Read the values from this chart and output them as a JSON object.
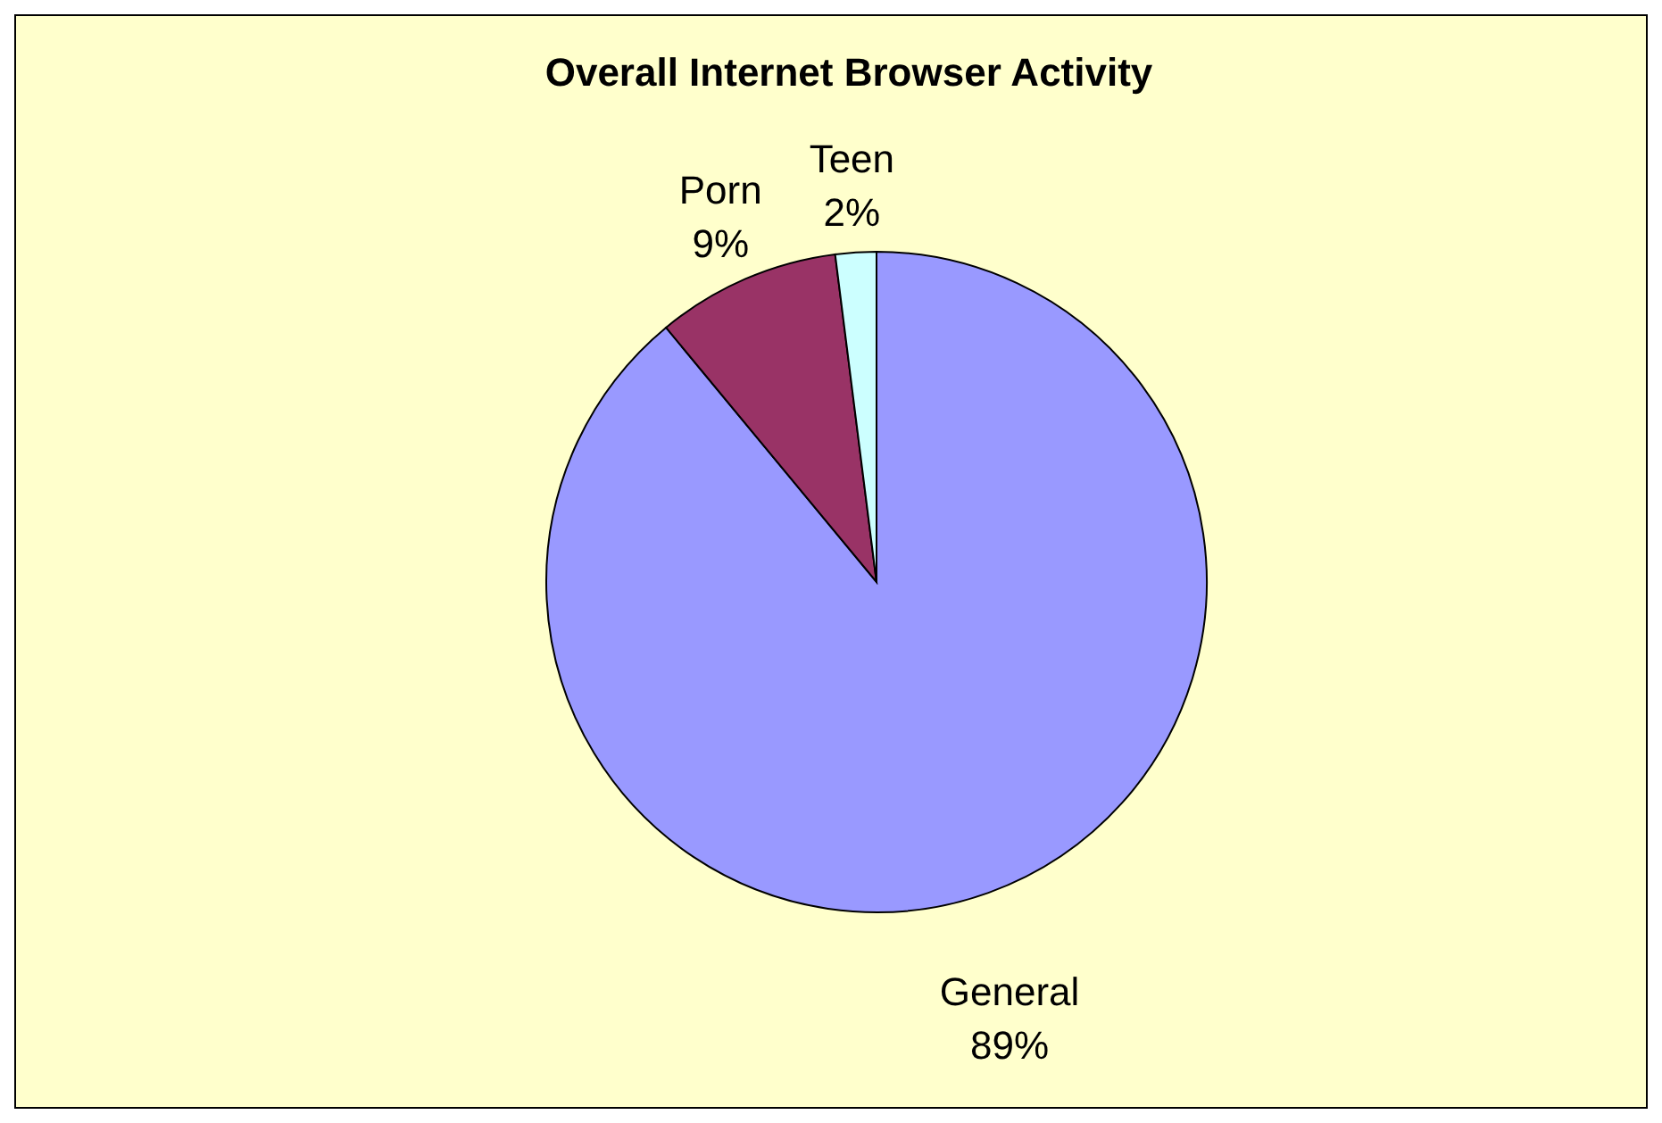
{
  "chart_data": {
    "type": "pie",
    "title": "Overall Internet Browser Activity",
    "categories": [
      "General",
      "Porn",
      "Teen"
    ],
    "values": [
      89,
      9,
      2
    ],
    "value_labels": [
      "89%",
      "9%",
      "2%"
    ],
    "colors": [
      "#9999ff",
      "#993366",
      "#ccffff"
    ]
  }
}
